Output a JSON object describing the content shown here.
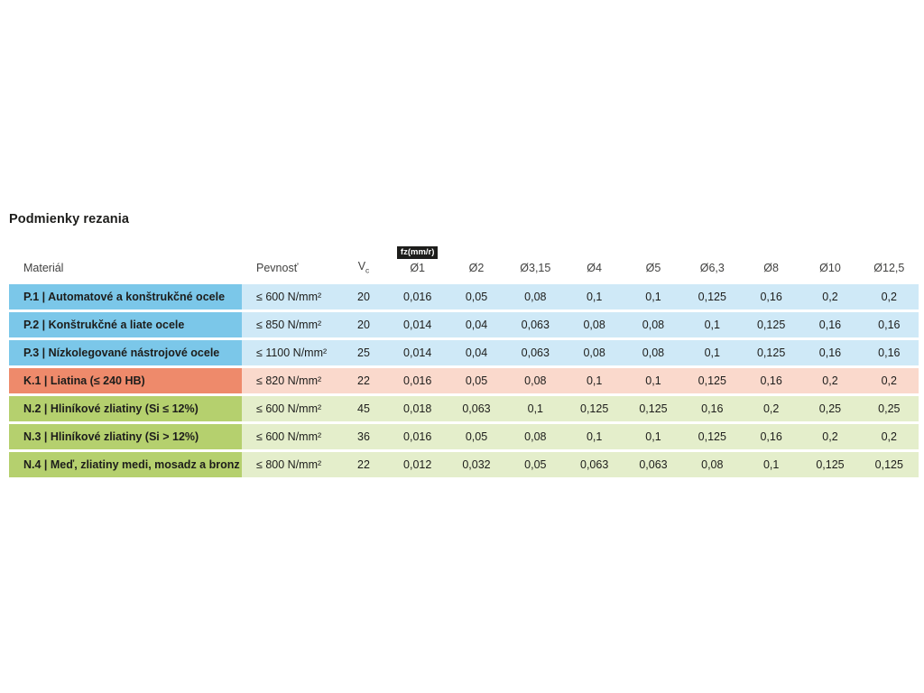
{
  "title": "Podmienky rezania",
  "colors": {
    "page_bg": "#ffffff",
    "title_text": "#1d1d1b",
    "header_text": "#424241",
    "cell_text": "#1d1d1b",
    "badge_bg": "#1d1d1b",
    "badge_text": "#ffffff",
    "groups": {
      "blue": {
        "label": "#7bc7e9",
        "body": "#cfe9f7"
      },
      "orange": {
        "label": "#ee8a6b",
        "body": "#fad9cc"
      },
      "green": {
        "label": "#b5d06e",
        "body": "#e4eecb"
      }
    }
  },
  "table": {
    "columns": {
      "material": "Materiál",
      "pevnost": "Pevnosť",
      "vc_base": "V",
      "vc_sub": "c",
      "feed_badge": "fz(mm/r)",
      "diameters": [
        "Ø1",
        "Ø2",
        "Ø3,15",
        "Ø4",
        "Ø5",
        "Ø6,3",
        "Ø8",
        "Ø10",
        "Ø12,5"
      ]
    },
    "rows": [
      {
        "group": "blue",
        "material": "P.1 | Automatové a konštrukčné ocele",
        "pevnost": "≤ 600 N/mm²",
        "vc": "20",
        "feeds": [
          "0,016",
          "0,05",
          "0,08",
          "0,1",
          "0,1",
          "0,125",
          "0,16",
          "0,2",
          "0,2"
        ]
      },
      {
        "group": "blue",
        "material": "P.2 | Konštrukčné a liate ocele",
        "pevnost": "≤ 850 N/mm²",
        "vc": "20",
        "feeds": [
          "0,014",
          "0,04",
          "0,063",
          "0,08",
          "0,08",
          "0,1",
          "0,125",
          "0,16",
          "0,16"
        ]
      },
      {
        "group": "blue",
        "material": "P.3 | Nízkolegované nástrojové ocele",
        "pevnost": "≤ 1100 N/mm²",
        "vc": "25",
        "feeds": [
          "0,014",
          "0,04",
          "0,063",
          "0,08",
          "0,08",
          "0,1",
          "0,125",
          "0,16",
          "0,16"
        ]
      },
      {
        "group": "orange",
        "material": "K.1 | Liatina (≤ 240 HB)",
        "pevnost": "≤ 820 N/mm²",
        "vc": "22",
        "feeds": [
          "0,016",
          "0,05",
          "0,08",
          "0,1",
          "0,1",
          "0,125",
          "0,16",
          "0,2",
          "0,2"
        ]
      },
      {
        "group": "green",
        "material": "N.2 | Hliníkové zliatiny (Si ≤ 12%)",
        "pevnost": "≤ 600 N/mm²",
        "vc": "45",
        "feeds": [
          "0,018",
          "0,063",
          "0,1",
          "0,125",
          "0,125",
          "0,16",
          "0,2",
          "0,25",
          "0,25"
        ]
      },
      {
        "group": "green",
        "material": "N.3 | Hliníkové zliatiny (Si > 12%)",
        "pevnost": "≤ 600 N/mm²",
        "vc": "36",
        "feeds": [
          "0,016",
          "0,05",
          "0,08",
          "0,1",
          "0,1",
          "0,125",
          "0,16",
          "0,2",
          "0,2"
        ]
      },
      {
        "group": "green",
        "material": "N.4 | Meď, zliatiny medi, mosadz a bronz",
        "pevnost": "≤ 800 N/mm²",
        "vc": "22",
        "feeds": [
          "0,012",
          "0,032",
          "0,05",
          "0,063",
          "0,063",
          "0,08",
          "0,1",
          "0,125",
          "0,125"
        ]
      }
    ]
  }
}
